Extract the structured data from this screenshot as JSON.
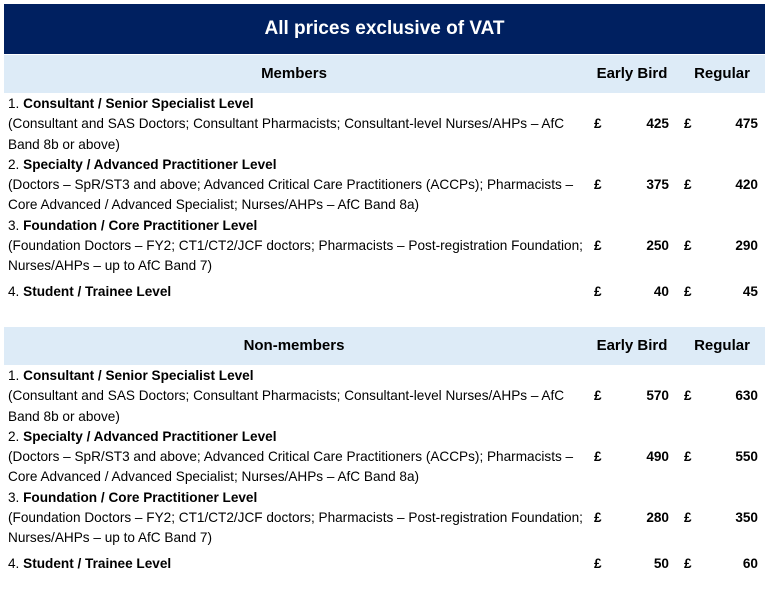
{
  "title": "All prices exclusive of VAT",
  "columns": {
    "early": "Early Bird",
    "regular": "Regular"
  },
  "currency": "£",
  "colors": {
    "title_bg": "#002060",
    "header_bg": "#ddebf7"
  },
  "sections": [
    {
      "label": "Members",
      "rows": [
        {
          "num": "1.",
          "name": "Consultant / Senior Specialist Level",
          "detail": "(Consultant and SAS Doctors; Consultant Pharmacists; Consultant-level Nurses/AHPs – AfC Band 8b or above)",
          "early": "425",
          "regular": "475"
        },
        {
          "num": "2.",
          "name": "Specialty / Advanced Practitioner Level",
          "detail": "(Doctors – SpR/ST3 and above; Advanced Critical Care Practitioners (ACCPs); Pharmacists – Core Advanced / Advanced Specialist; Nurses/AHPs – AfC Band 8a)",
          "early": "375",
          "regular": "420"
        },
        {
          "num": "3.",
          "name": "Foundation / Core Practitioner Level",
          "detail": "(Foundation Doctors – FY2; CT1/CT2/JCF doctors; Pharmacists – Post-registration Foundation; Nurses/AHPs – up to AfC Band 7)",
          "early": "250",
          "regular": "290"
        },
        {
          "num": "4.",
          "name": "Student / Trainee Level",
          "detail": "",
          "early": "40",
          "regular": "45"
        }
      ]
    },
    {
      "label": "Non-members",
      "rows": [
        {
          "num": "1.",
          "name": "Consultant / Senior Specialist Level",
          "detail": "(Consultant and SAS Doctors; Consultant Pharmacists; Consultant-level Nurses/AHPs – AfC Band 8b or above)",
          "early": "570",
          "regular": "630"
        },
        {
          "num": "2.",
          "name": "Specialty / Advanced Practitioner Level",
          "detail": "(Doctors – SpR/ST3 and above; Advanced Critical Care Practitioners (ACCPs); Pharmacists – Core Advanced / Advanced Specialist; Nurses/AHPs – AfC Band 8a)",
          "early": "490",
          "regular": "550"
        },
        {
          "num": "3.",
          "name": "Foundation / Core Practitioner Level",
          "detail": "(Foundation Doctors – FY2; CT1/CT2/JCF doctors; Pharmacists – Post-registration Foundation; Nurses/AHPs – up to AfC Band 7)",
          "early": "280",
          "regular": "350"
        },
        {
          "num": "4.",
          "name": "Student / Trainee Level",
          "detail": "",
          "early": "50",
          "regular": "60"
        }
      ]
    }
  ]
}
